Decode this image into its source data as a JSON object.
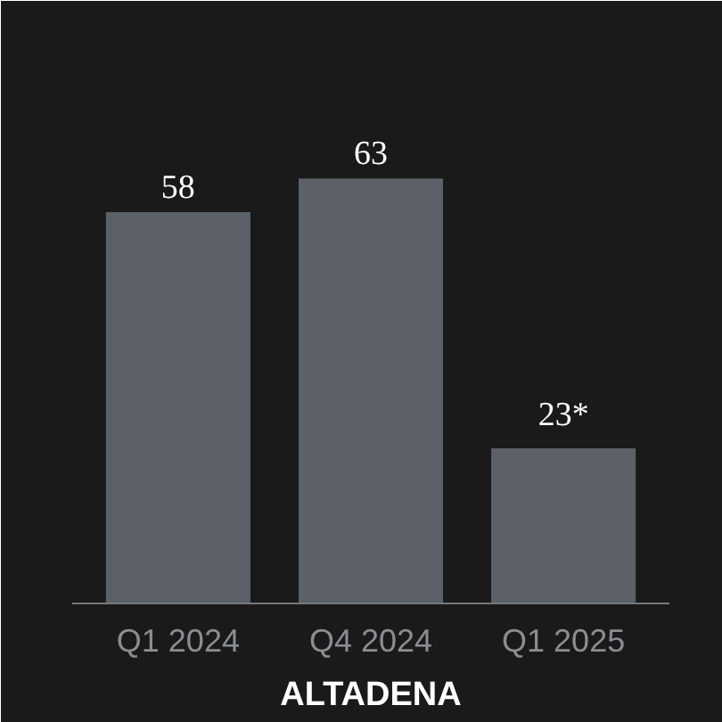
{
  "chart_data": {
    "type": "bar",
    "title": "ALTADENA",
    "categories": [
      "Q1 2024",
      "Q4 2024",
      "Q1 2025"
    ],
    "values": [
      58,
      63,
      23
    ],
    "value_labels": [
      "58",
      "63",
      "23*"
    ],
    "color": "#5b6166",
    "grid": false
  }
}
